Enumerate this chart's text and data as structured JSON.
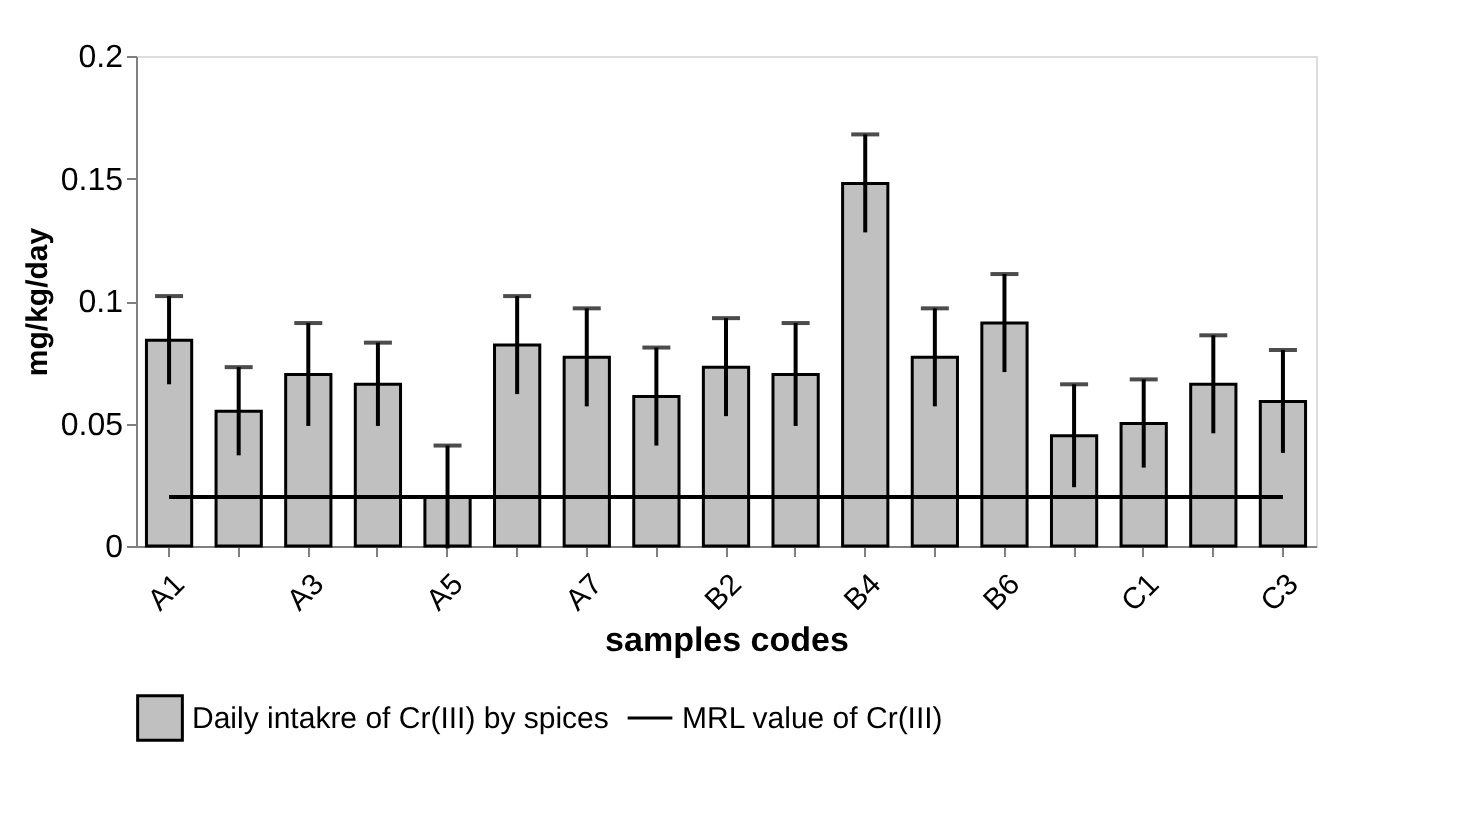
{
  "chart_data": {
    "type": "bar",
    "xlabel": "samples codes",
    "ylabel": "mg/kg/day",
    "categories": [
      "A1",
      null,
      "A3",
      null,
      "A5",
      null,
      "A7",
      null,
      "B2",
      null,
      "B4",
      null,
      "B6",
      null,
      "C1",
      null,
      "C3"
    ],
    "series": [
      {
        "name": "Daily intakre of Cr(III) by spices",
        "color": "#c0c0c0",
        "values": [
          0.084,
          0.055,
          0.07,
          0.066,
          0.02,
          0.082,
          0.077,
          0.061,
          0.073,
          0.07,
          0.148,
          0.077,
          0.091,
          0.045,
          0.05,
          0.066,
          0.059
        ],
        "errors": [
          0.018,
          0.018,
          0.021,
          0.017,
          0.021,
          0.02,
          0.02,
          0.02,
          0.02,
          0.021,
          0.02,
          0.02,
          0.02,
          0.021,
          0.018,
          0.02,
          0.021
        ]
      },
      {
        "name": "MRL value of Cr(III)",
        "type": "line",
        "color": "#000000",
        "values": [
          0.02,
          0.02,
          0.02,
          0.02,
          0.02,
          0.02,
          0.02,
          0.02,
          0.02,
          0.02,
          0.02,
          0.02,
          0.02,
          0.02,
          0.02,
          0.02,
          0.02
        ]
      }
    ],
    "ylim": [
      0,
      0.2
    ],
    "yticks": [
      0,
      0.05,
      0.1,
      0.15,
      0.2
    ],
    "grid": false,
    "legend": "bottom"
  }
}
